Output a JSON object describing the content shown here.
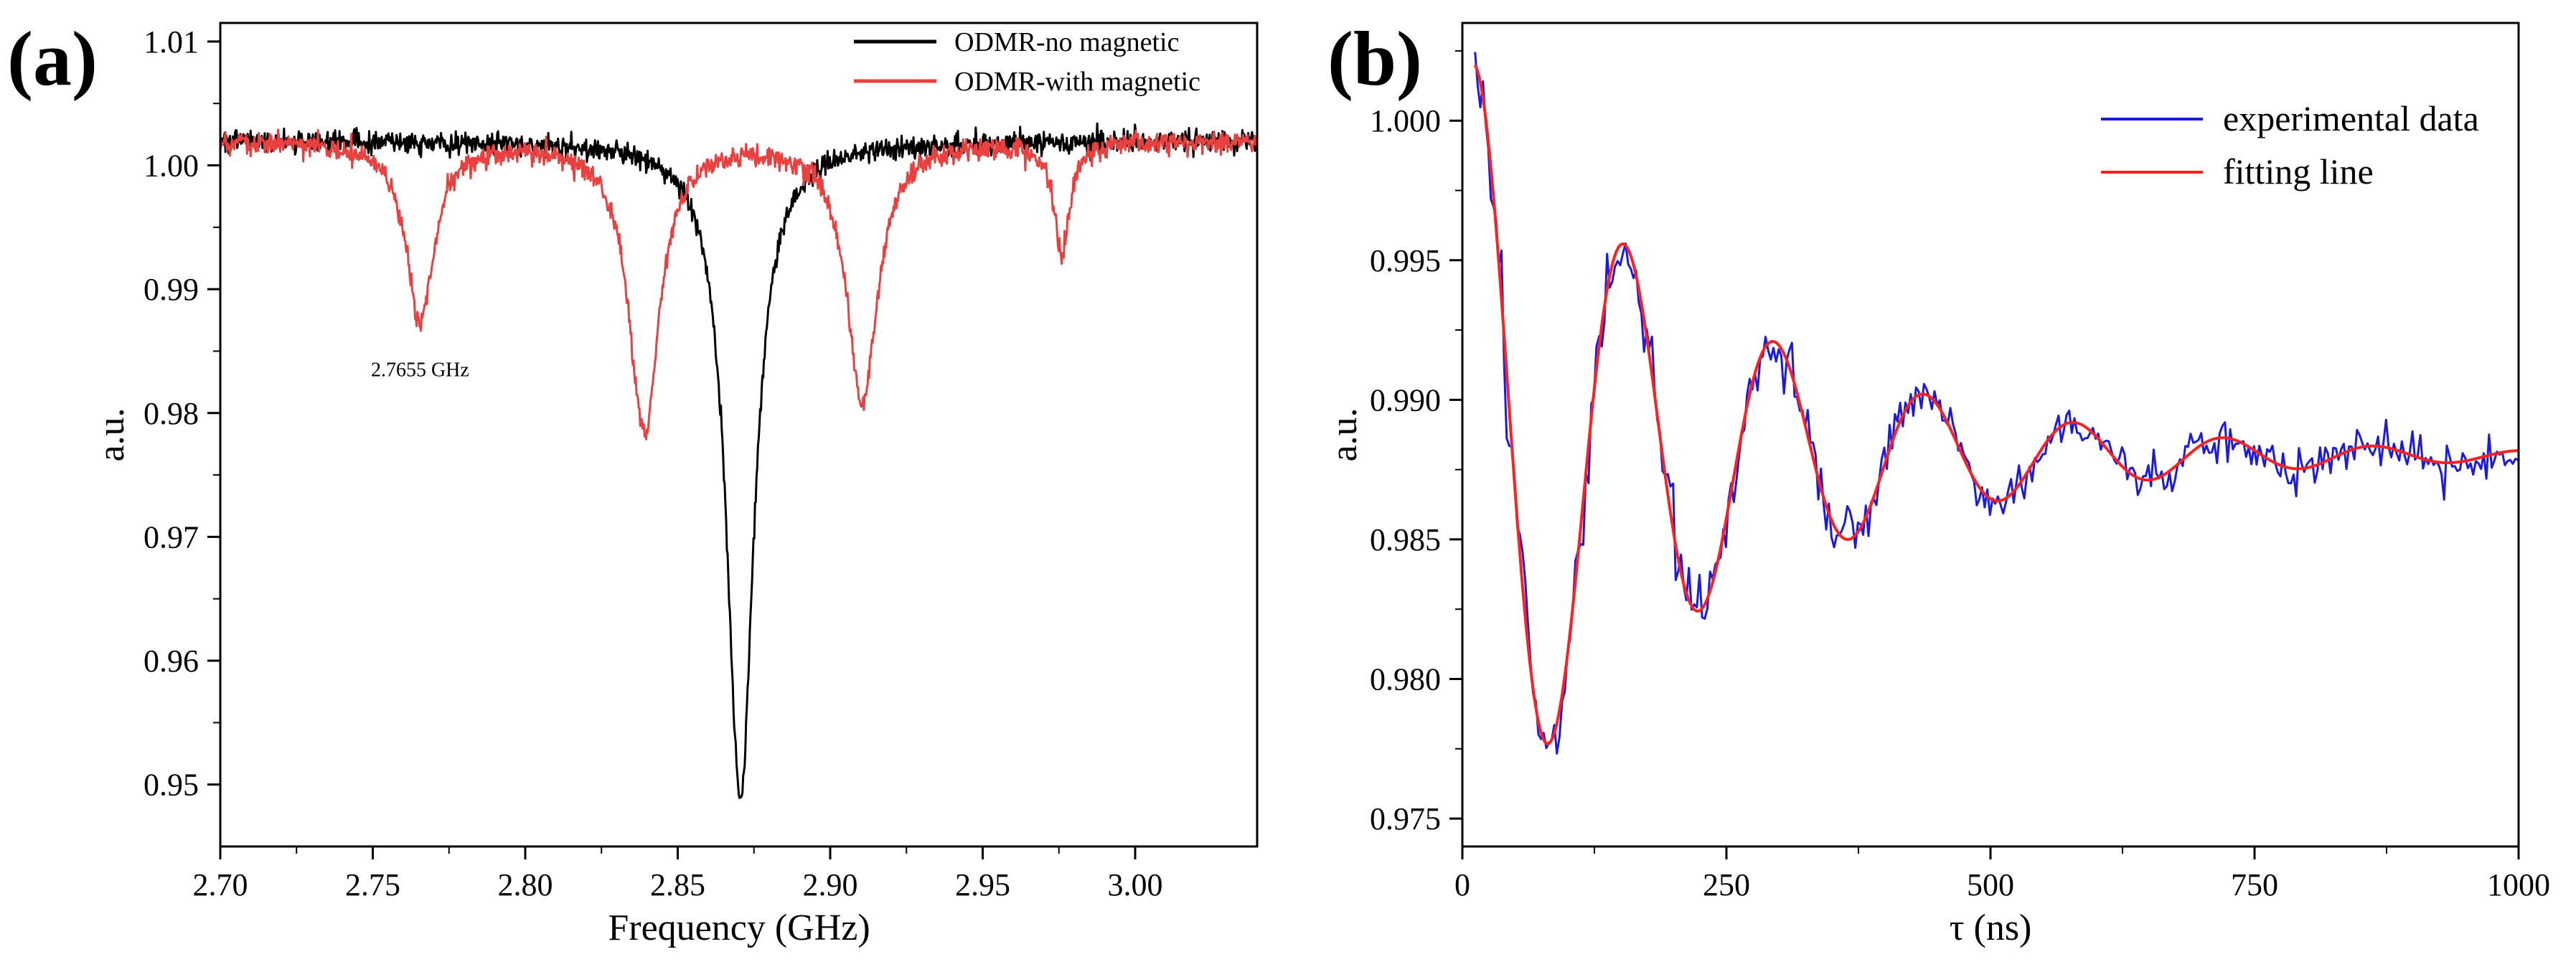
{
  "colors": {
    "black_series": "#000000",
    "red_series": "#e8413f",
    "blue_series": "#1a1ae6",
    "fit_series": "#ff2020"
  },
  "chart_data": [
    {
      "panel_label": "(a)",
      "type": "line",
      "xlabel": "Frequency (GHz)",
      "ylabel": "a.u.",
      "xlim": [
        2.7,
        3.04
      ],
      "ylim": [
        0.945,
        1.0115
      ],
      "xticks": [
        2.7,
        2.75,
        2.8,
        2.85,
        2.9,
        2.95,
        3.0
      ],
      "xtick_labels": [
        "2.70",
        "2.75",
        "2.80",
        "2.85",
        "2.90",
        "2.95",
        "3.00"
      ],
      "yticks": [
        0.95,
        0.96,
        0.97,
        0.98,
        0.99,
        1.0,
        1.01
      ],
      "ytick_labels": [
        "0.95",
        "0.96",
        "0.97",
        "0.98",
        "0.99",
        "1.00",
        "1.01"
      ],
      "legend_position": "top-right",
      "series": [
        {
          "name": "ODMR-no magnetic",
          "color": "#000000",
          "baseline": 1.002,
          "noise": 0.0008,
          "dips": [
            {
              "center": 2.8705,
              "depth": 0.053,
              "width": 0.0055
            }
          ]
        },
        {
          "name": "ODMR-with magnetic",
          "color": "#e8413f",
          "baseline": 1.002,
          "noise": 0.0008,
          "dips": [
            {
              "center": 2.7655,
              "depth": 0.0145,
              "width": 0.0055
            },
            {
              "center": 2.839,
              "depth": 0.0235,
              "width": 0.006
            },
            {
              "center": 2.9105,
              "depth": 0.021,
              "width": 0.006
            },
            {
              "center": 2.976,
              "depth": 0.009,
              "width": 0.003
            }
          ]
        }
      ],
      "annotations": [
        {
          "text": "2.7655 GHz",
          "x": 2.7655,
          "y": 0.9875
        }
      ]
    },
    {
      "panel_label": "(b)",
      "type": "line",
      "xlabel": "τ (ns)",
      "ylabel": "a.u.",
      "xlim": [
        0,
        1000
      ],
      "ylim": [
        0.974,
        1.0035
      ],
      "xticks": [
        0,
        250,
        500,
        750,
        1000
      ],
      "xtick_labels": [
        "0",
        "250",
        "500",
        "750",
        "1000"
      ],
      "yticks": [
        0.975,
        0.98,
        0.985,
        0.99,
        0.995,
        1.0
      ],
      "ytick_labels": [
        "0.975",
        "0.980",
        "0.985",
        "0.990",
        "0.995",
        "1.000"
      ],
      "legend_position": "top-right",
      "model": {
        "offset": 0.988,
        "amplitude": 0.014,
        "tau_decay": 230,
        "period": 142,
        "t0": 12
      },
      "series": [
        {
          "name": "experimental data",
          "color": "#1a1ae6",
          "x_start": 12,
          "x_end": 1000,
          "step": 2.5,
          "noise": 0.00065
        },
        {
          "name": "fitting line",
          "color": "#ff2020",
          "x_start": 12,
          "x_end": 1000,
          "step": 2
        }
      ]
    }
  ]
}
